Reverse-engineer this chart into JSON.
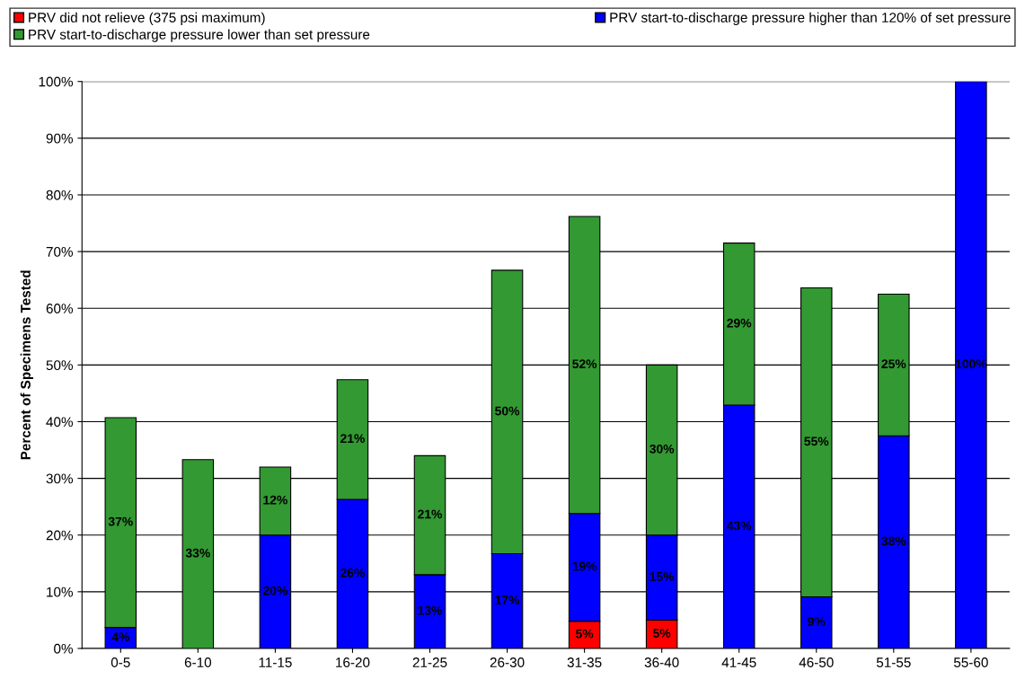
{
  "chart_data": {
    "type": "bar",
    "stacked": true,
    "ylabel": "Percent of Specimens Tested",
    "categories": [
      "0-5",
      "6-10",
      "11-15",
      "16-20",
      "21-25",
      "26-30",
      "31-35",
      "36-40",
      "41-45",
      "46-50",
      "51-55",
      "55-60"
    ],
    "series": [
      {
        "name": "PRV did not relieve (375 psi maximum)",
        "color": "#ff0000",
        "values": [
          null,
          null,
          null,
          null,
          null,
          null,
          4.8,
          5,
          null,
          null,
          null,
          null
        ],
        "value_labels": [
          null,
          null,
          null,
          null,
          null,
          null,
          "5%",
          "5%",
          null,
          null,
          null,
          null
        ]
      },
      {
        "name": "PRV start-to-discharge pressure higher than 120% of set pressure",
        "color": "#0000ff",
        "values": [
          3.7,
          null,
          20,
          26.3,
          13,
          16.7,
          19,
          15,
          42.9,
          9.1,
          37.5,
          100
        ],
        "value_labels": [
          "4%",
          null,
          "20%",
          "26%",
          "13%",
          "17%",
          "19%",
          "15%",
          "43%",
          "9%",
          "38%",
          "100%"
        ]
      },
      {
        "name": "PRV start-to-discharge pressure lower than set pressure",
        "color": "#339933",
        "values": [
          37,
          33.3,
          12,
          21.1,
          21,
          50,
          52.4,
          30,
          28.6,
          54.5,
          25,
          null
        ],
        "value_labels": [
          "37%",
          "33%",
          "12%",
          "21%",
          "21%",
          "50%",
          "52%",
          "30%",
          "29%",
          "55%",
          "25%",
          null
        ]
      }
    ],
    "ylim": [
      0,
      100
    ],
    "yticks": [
      {
        "value": 0,
        "label": "0%"
      },
      {
        "value": 10,
        "label": "10%"
      },
      {
        "value": 20,
        "label": "20%"
      },
      {
        "value": 30,
        "label": "30%"
      },
      {
        "value": 40,
        "label": "40%"
      },
      {
        "value": 50,
        "label": "50%"
      },
      {
        "value": 60,
        "label": "60%"
      },
      {
        "value": 70,
        "label": "70%"
      },
      {
        "value": 80,
        "label": "80%"
      },
      {
        "value": 90,
        "label": "90%"
      },
      {
        "value": 100,
        "label": "100%"
      }
    ],
    "grid": "y",
    "legend": "top"
  }
}
